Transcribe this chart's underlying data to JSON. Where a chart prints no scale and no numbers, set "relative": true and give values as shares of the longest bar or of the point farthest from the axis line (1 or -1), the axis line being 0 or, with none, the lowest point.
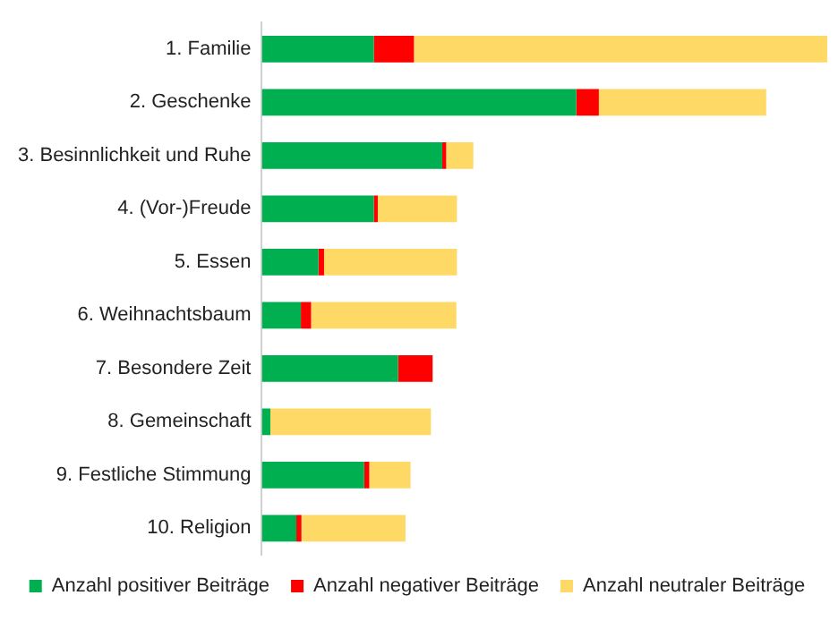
{
  "chart_data": {
    "type": "bar",
    "orientation": "horizontal",
    "stacked": true,
    "relative": true,
    "grid": false,
    "legend": "bottom",
    "categories": [
      "1. Familie",
      "2. Geschenke",
      "3. Besinnlichkeit und Ruhe",
      "4. (Vor-)Freude",
      "5. Essen",
      "6. Weihnachtsbaum",
      "7. Besondere Zeit",
      "8. Gemeinschaft",
      "9. Festliche Stimmung",
      "10. Religion"
    ],
    "series": [
      {
        "name": "Anzahl positiver Beiträge",
        "color": "#00b050",
        "values": [
          0.198,
          0.556,
          0.319,
          0.198,
          0.1,
          0.069,
          0.241,
          0.015,
          0.181,
          0.061
        ]
      },
      {
        "name": "Anzahl negativer Beiträge",
        "color": "#ff0000",
        "values": [
          0.071,
          0.04,
          0.007,
          0.007,
          0.01,
          0.018,
          0.061,
          0,
          0.009,
          0.009
        ]
      },
      {
        "name": "Anzahl neutraler Beiträge",
        "color": "#ffd966",
        "values": [
          0.731,
          0.296,
          0.048,
          0.14,
          0.235,
          0.257,
          0,
          0.284,
          0.073,
          0.184
        ]
      }
    ]
  }
}
